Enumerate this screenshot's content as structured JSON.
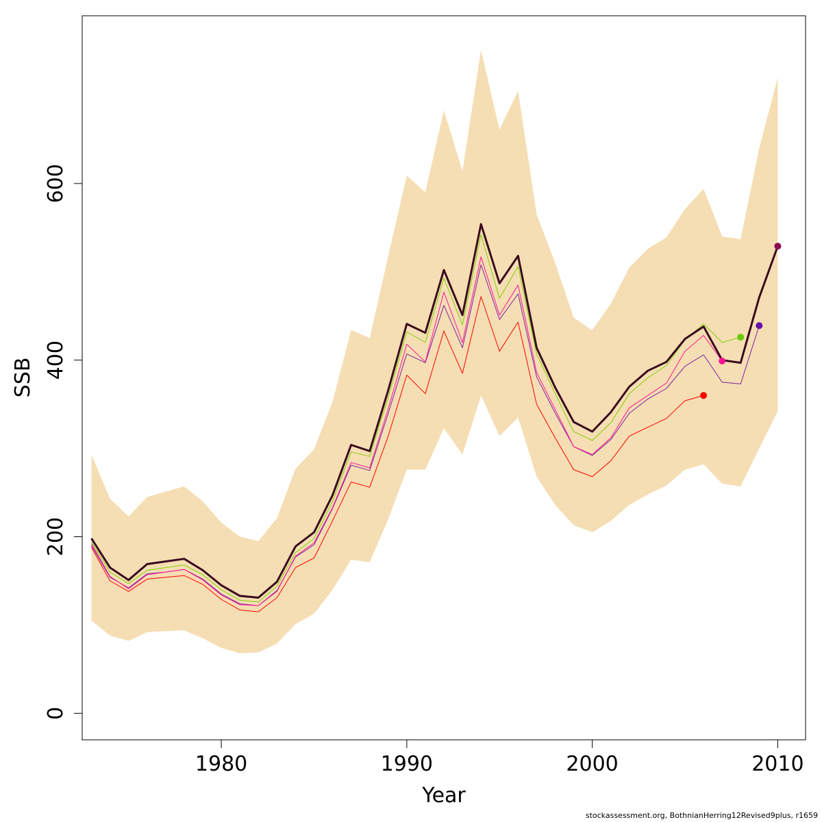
{
  "chart_data": {
    "type": "line",
    "xlabel": "Year",
    "ylabel": "SSB",
    "xlim": [
      1972.5,
      2011.5
    ],
    "ylim": [
      -30,
      790
    ],
    "x_ticks": [
      1980,
      1990,
      2000,
      2010
    ],
    "x_tick_labels": [
      "1980",
      "1990",
      "2000",
      "2010"
    ],
    "y_ticks": [
      0,
      200,
      400,
      600
    ],
    "y_tick_labels": [
      "0",
      "200",
      "400",
      "600"
    ],
    "grid": false,
    "band": {
      "color": "#f5deb3",
      "x": [
        1973,
        1974,
        1975,
        1976,
        1977,
        1978,
        1979,
        1980,
        1981,
        1982,
        1983,
        1984,
        1985,
        1986,
        1987,
        1988,
        1989,
        1990,
        1991,
        1992,
        1993,
        1994,
        1995,
        1996,
        1997,
        1998,
        1999,
        2000,
        2001,
        2002,
        2003,
        2004,
        2005,
        2006,
        2007,
        2008,
        2009,
        2010
      ],
      "lower": [
        105,
        88,
        82,
        92,
        93,
        94,
        85,
        74,
        68,
        69,
        79,
        101,
        113,
        140,
        174,
        171,
        220,
        276,
        276,
        323,
        293,
        360,
        314,
        335,
        268,
        236,
        213,
        205,
        218,
        236,
        248,
        258,
        276,
        282,
        260,
        257,
        300,
        342
      ],
      "upper": [
        293,
        243,
        223,
        245,
        251,
        257,
        240,
        216,
        200,
        195,
        221,
        277,
        299,
        353,
        434,
        425,
        518,
        609,
        590,
        683,
        614,
        751,
        661,
        705,
        565,
        510,
        448,
        434,
        464,
        505,
        526,
        539,
        571,
        594,
        540,
        537,
        640,
        720
      ]
    },
    "series": [
      {
        "color": "#3a0a1e",
        "width": 3,
        "x": [
          1973,
          1974,
          1975,
          1976,
          1977,
          1978,
          1979,
          1980,
          1981,
          1982,
          1983,
          1984,
          1985,
          1986,
          1987,
          1988,
          1989,
          1990,
          1991,
          1992,
          1993,
          1994,
          1995,
          1996,
          1997,
          1998,
          1999,
          2000,
          2001,
          2002,
          2003,
          2004,
          2005,
          2006,
          2007,
          2008,
          2009,
          2010
        ],
        "y": [
          198,
          165,
          151,
          169,
          172,
          175,
          162,
          145,
          133,
          131,
          149,
          189,
          205,
          247,
          304,
          297,
          366,
          441,
          431,
          502,
          451,
          554,
          487,
          518,
          414,
          369,
          330,
          319,
          341,
          370,
          388,
          398,
          424,
          438,
          400,
          397,
          471,
          529
        ],
        "end_point_color": "#8b0a50"
      },
      {
        "color": "#7fd000",
        "width": 1,
        "x": [
          1973,
          1974,
          1975,
          1976,
          1977,
          1978,
          1979,
          1980,
          1981,
          1982,
          1983,
          1984,
          1985,
          1986,
          1987,
          1988,
          1989,
          1990,
          1991,
          1992,
          1993,
          1994,
          1995,
          1996,
          1997,
          1998,
          1999,
          2000,
          2001,
          2002,
          2003,
          2004,
          2005,
          2006,
          2007,
          2008
        ],
        "y": [
          194,
          160,
          147,
          162,
          165,
          168,
          157,
          140,
          128,
          126,
          144,
          182,
          198,
          240,
          296,
          291,
          358,
          432,
          420,
          493,
          440,
          542,
          470,
          506,
          407,
          362,
          319,
          309,
          329,
          362,
          380,
          394,
          423,
          441,
          420,
          426
        ],
        "end_point_color": "#66cc00"
      },
      {
        "color": "#7a1fa2",
        "width": 1,
        "x": [
          1973,
          1974,
          1975,
          1976,
          1977,
          1978,
          1979,
          1980,
          1981,
          1982,
          1983,
          1984,
          1985,
          1986,
          1987,
          1988,
          1989,
          1990,
          1991,
          1992,
          1993,
          1994,
          1995,
          1996,
          1997,
          1998,
          1999,
          2000,
          2001,
          2002,
          2003,
          2004,
          2005,
          2006,
          2007,
          2008,
          2009
        ],
        "y": [
          190,
          154,
          142,
          158,
          160,
          163,
          152,
          135,
          124,
          122,
          139,
          177,
          191,
          232,
          281,
          275,
          340,
          407,
          397,
          462,
          414,
          508,
          446,
          475,
          381,
          340,
          302,
          292,
          310,
          340,
          356,
          368,
          393,
          406,
          375,
          373,
          439
        ],
        "end_point_color": "#6a0dad"
      },
      {
        "color": "#ff1493",
        "width": 1,
        "x": [
          1973,
          1974,
          1975,
          1976,
          1977,
          1978,
          1979,
          1980,
          1981,
          1982,
          1983,
          1984,
          1985,
          1986,
          1987,
          1988,
          1989,
          1990,
          1991,
          1992,
          1993,
          1994,
          1995,
          1996,
          1997,
          1998,
          1999,
          2000,
          2001,
          2002,
          2003,
          2004,
          2005,
          2006,
          2007
        ],
        "y": [
          192,
          155,
          141,
          157,
          160,
          163,
          151,
          134,
          123,
          122,
          138,
          178,
          193,
          233,
          284,
          278,
          345,
          418,
          398,
          477,
          420,
          517,
          451,
          485,
          386,
          344,
          302,
          293,
          312,
          346,
          360,
          374,
          410,
          428,
          399
        ],
        "end_point_color": "#ff1493"
      },
      {
        "color": "#ff0000",
        "width": 1,
        "x": [
          1973,
          1974,
          1975,
          1976,
          1977,
          1978,
          1979,
          1980,
          1981,
          1982,
          1983,
          1984,
          1985,
          1986,
          1987,
          1988,
          1989,
          1990,
          1991,
          1992,
          1993,
          1994,
          1995,
          1996,
          1997,
          1998,
          1999,
          2000,
          2001,
          2002,
          2003,
          2004,
          2005,
          2006
        ],
        "y": [
          188,
          150,
          138,
          152,
          154,
          156,
          146,
          129,
          117,
          115,
          131,
          165,
          176,
          218,
          262,
          256,
          314,
          383,
          362,
          433,
          385,
          472,
          410,
          443,
          350,
          312,
          276,
          268,
          286,
          314,
          324,
          334,
          354,
          360
        ],
        "end_point_color": "#ff0000"
      }
    ]
  },
  "footer": "stockassessment.org, BothnianHerring12Revised9plus, r1659"
}
